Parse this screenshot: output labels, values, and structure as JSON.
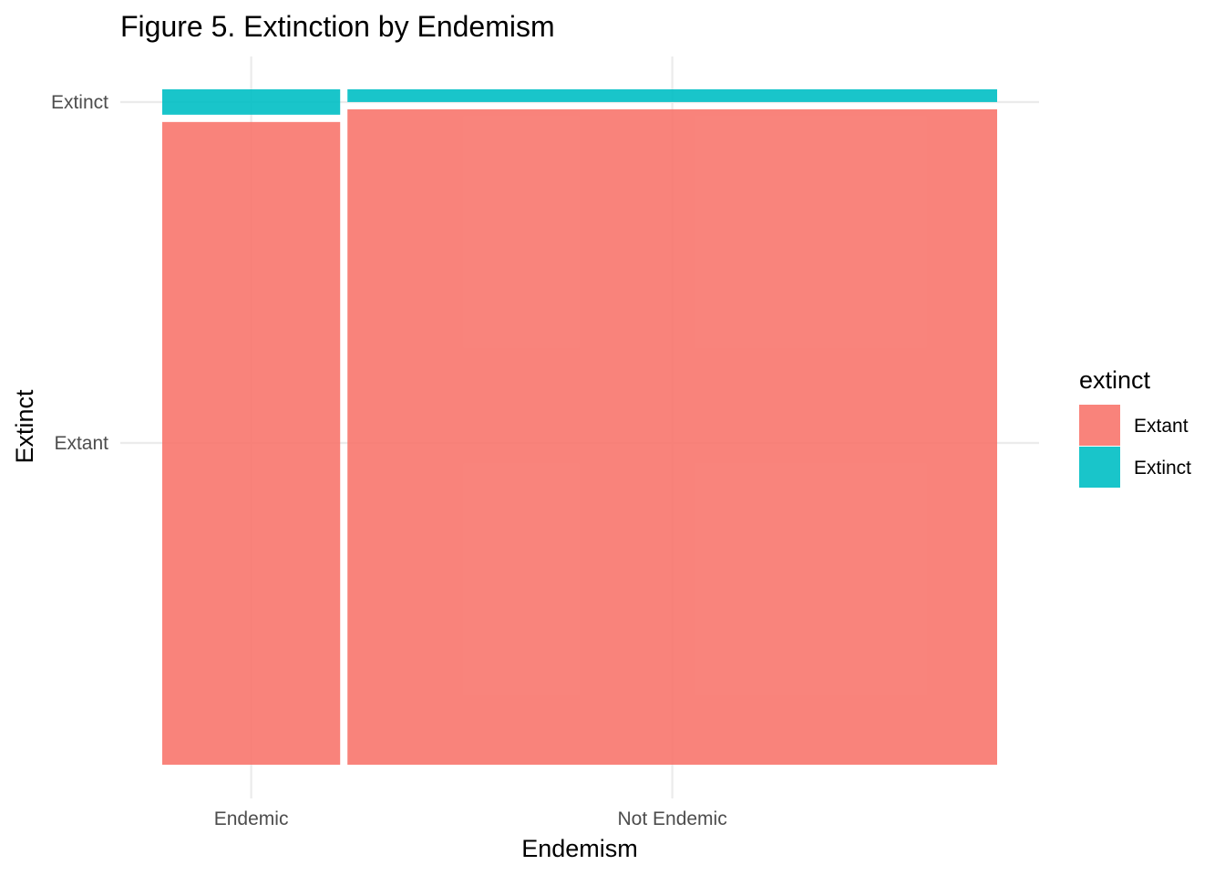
{
  "chart_data": {
    "type": "mosaic",
    "title": "Figure 5. Extinction by Endemism",
    "xlabel": "Endemism",
    "ylabel": "Extinct",
    "categories": [
      "Endemic",
      "Not Endemic"
    ],
    "y_ticks": [
      "Extant",
      "Extinct"
    ],
    "column_widths": [
      0.215,
      0.785
    ],
    "series": [
      {
        "name": "Extant",
        "values": [
          0.962,
          0.981
        ]
      },
      {
        "name": "Extinct",
        "values": [
          0.038,
          0.019
        ]
      }
    ],
    "legend": {
      "title": "extinct",
      "placement": "right",
      "items": [
        {
          "label": "Extant",
          "color": "#F8766D"
        },
        {
          "label": "Extinct",
          "color": "#00BFC4"
        }
      ]
    },
    "colors": {
      "Extant": "#F8766D",
      "Extinct": "#00BFC4"
    },
    "bar_opacity": 0.9,
    "grid": true
  }
}
